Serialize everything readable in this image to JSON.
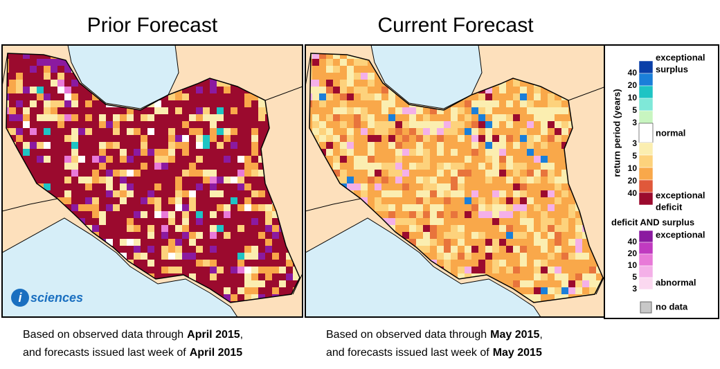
{
  "panels": [
    {
      "title": "Prior Forecast",
      "caption": [
        {
          "text": "Based on observed data through",
          "bold": "April 2015",
          "end": ","
        },
        {
          "text": "and forecasts issued last week of",
          "bold": "April 2015"
        }
      ]
    },
    {
      "title": "Current Forecast",
      "caption": [
        {
          "text": "Based on observed data through",
          "bold": "May 2015",
          "end": ","
        },
        {
          "text": "and forecasts issued last week of",
          "bold": "May 2015"
        }
      ]
    }
  ],
  "logo": {
    "mark": "i",
    "text": "sciences"
  },
  "legend": {
    "axis_title": "return period (years)",
    "surplus_label": [
      "exceptional",
      "surplus"
    ],
    "surplus_ticks": [
      40,
      20,
      10,
      5,
      3
    ],
    "normal": "normal",
    "deficit_ticks": [
      3,
      5,
      10,
      20,
      40
    ],
    "deficit_label": [
      "exceptional",
      "deficit"
    ],
    "both_title": "deficit AND surplus",
    "both_top": "exceptional",
    "both_ticks": [
      40,
      20,
      10,
      5,
      3
    ],
    "both_bottom": "abnormal",
    "no_data": "no data"
  }
}
